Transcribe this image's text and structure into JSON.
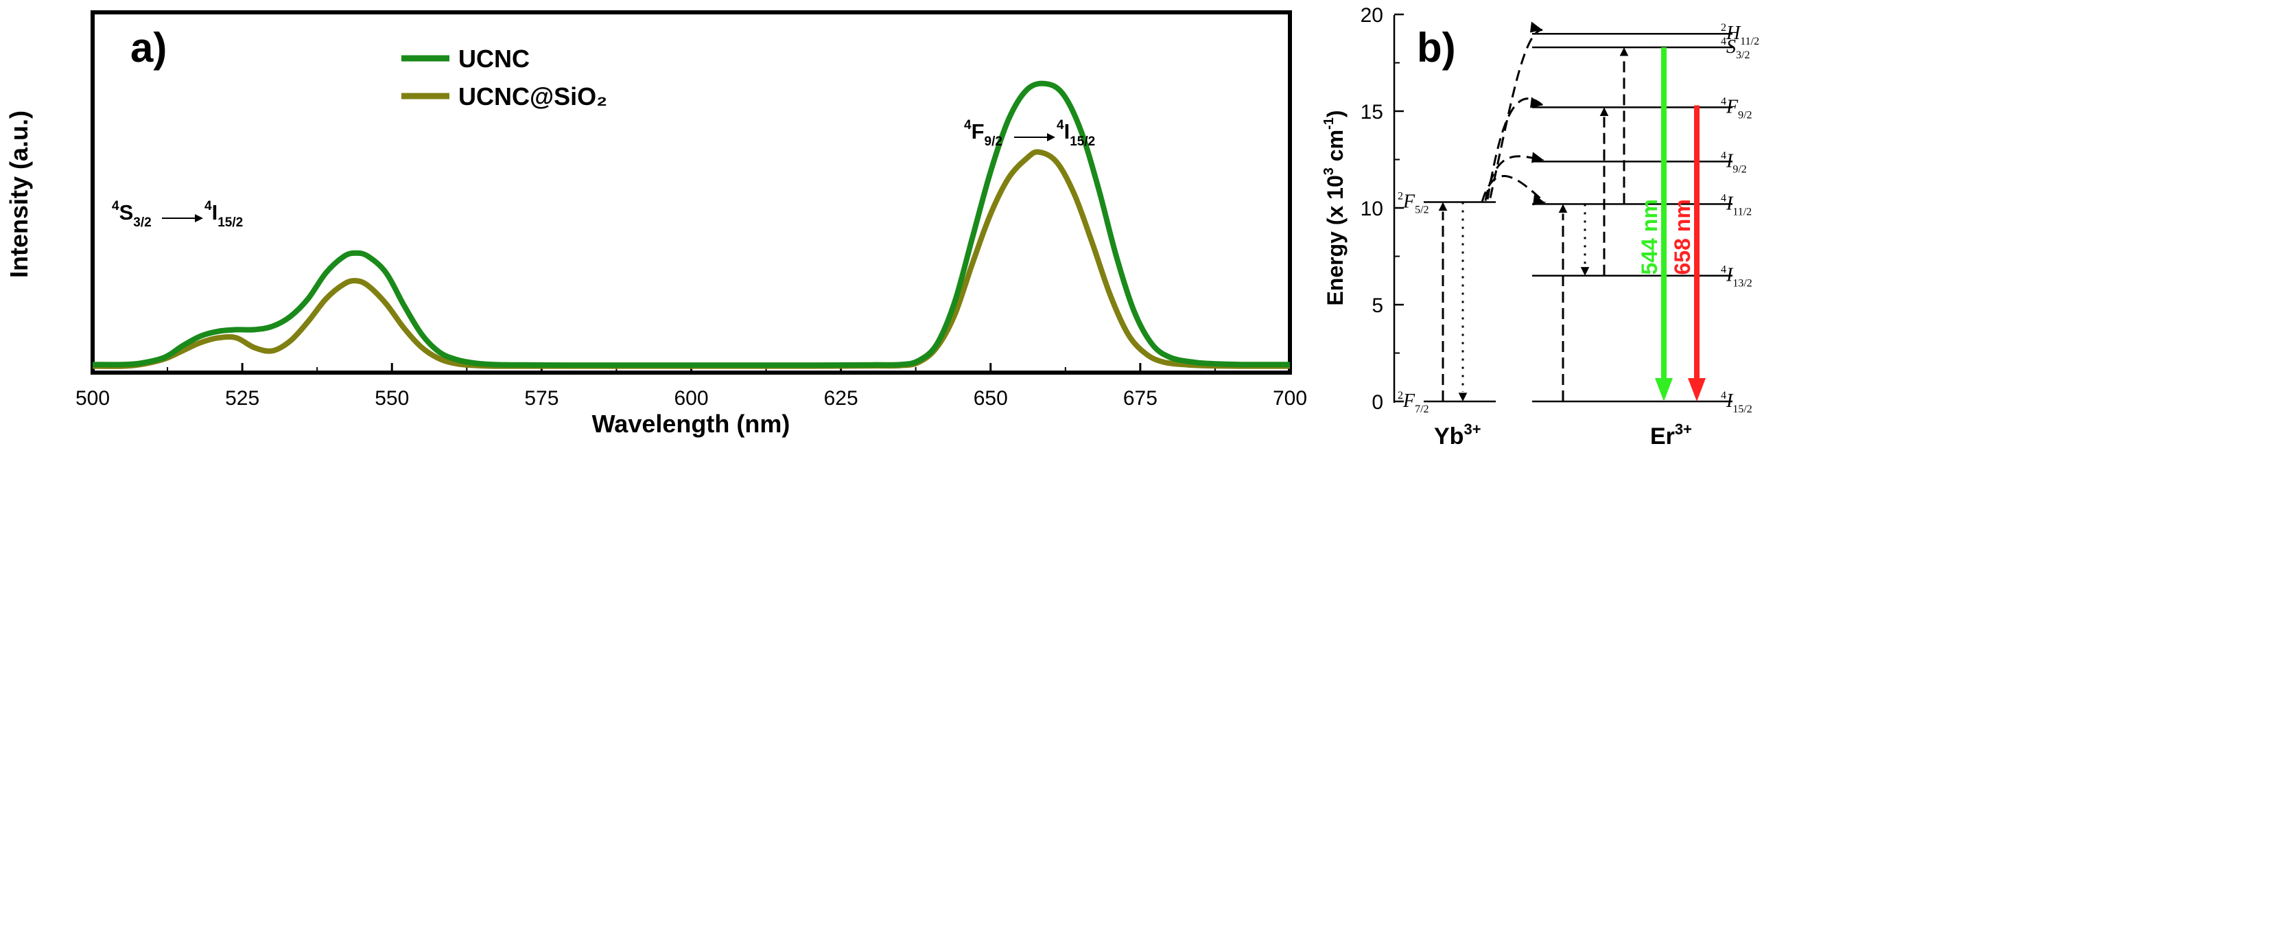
{
  "chart_data": [
    {
      "type": "line",
      "panel_label": "a)",
      "xlabel": "Wavelength (nm)",
      "ylabel": "Intensity (a.u.)",
      "xlim": [
        500,
        700
      ],
      "ylim": [
        0,
        100
      ],
      "x_ticks": [
        "500",
        "525",
        "550",
        "575",
        "600",
        "625",
        "650",
        "675",
        "700"
      ],
      "legend": [
        "UCNC",
        "UCNC@SiO₂"
      ],
      "legend_position": "top-center",
      "series": [
        {
          "name": "UCNC",
          "color": "#1a8a1a",
          "x": [
            500,
            505,
            508,
            512,
            515,
            518,
            521,
            524,
            527,
            530,
            533,
            536,
            539,
            542,
            544,
            546,
            549,
            552,
            555,
            558,
            561,
            564,
            567,
            570,
            580,
            590,
            600,
            610,
            620,
            630,
            635,
            638,
            641,
            644,
            647,
            650,
            653,
            656,
            659,
            662,
            665,
            668,
            671,
            674,
            677,
            680,
            684,
            688,
            692,
            696,
            700
          ],
          "y": [
            0.8,
            0.8,
            1.2,
            3,
            6.5,
            9.5,
            11,
            11.5,
            11.5,
            12.5,
            15.5,
            21,
            29,
            34,
            35,
            34,
            29,
            19,
            10,
            4.5,
            2.2,
            1.2,
            0.8,
            0.7,
            0.6,
            0.6,
            0.6,
            0.6,
            0.6,
            0.7,
            0.8,
            2,
            7,
            20,
            40,
            60,
            76,
            85,
            87,
            84,
            73,
            55,
            34,
            17,
            7,
            3,
            1.5,
            1,
            0.8,
            0.8,
            0.8
          ]
        },
        {
          "name": "UCNC@SiO₂",
          "color": "#808012",
          "x": [
            500,
            505,
            508,
            512,
            515,
            518,
            521,
            524,
            527,
            530,
            533,
            536,
            539,
            542,
            544,
            546,
            549,
            552,
            555,
            558,
            561,
            564,
            567,
            570,
            580,
            590,
            600,
            610,
            620,
            630,
            635,
            638,
            641,
            644,
            647,
            650,
            653,
            656,
            658,
            661,
            664,
            667,
            670,
            673,
            676,
            679,
            683,
            687,
            692,
            696,
            700
          ],
          "y": [
            0.3,
            0.3,
            0.8,
            2.5,
            5,
            7.5,
            9,
            9,
            6,
            5,
            8,
            14,
            21,
            25.5,
            26.5,
            25,
            19.5,
            12,
            6,
            2.5,
            1,
            0.5,
            0.3,
            0.3,
            0.3,
            0.3,
            0.3,
            0.3,
            0.3,
            0.4,
            0.5,
            1.5,
            6,
            16,
            32,
            47,
            58,
            64,
            66,
            63,
            53,
            38,
            22,
            10,
            4,
            1.5,
            0.7,
            0.4,
            0.3,
            0.3,
            0.3
          ]
        }
      ],
      "annotations": [
        {
          "pre": "4",
          "base": "S",
          "sub": "3/2",
          "pre2": "4",
          "base2": "I",
          "sub2": "15/2"
        },
        {
          "pre": "4",
          "base": "F",
          "sub": "9/2",
          "pre2": "4",
          "base2": "I",
          "sub2": "15/2"
        }
      ]
    },
    {
      "type": "diagram",
      "panel_label": "b)",
      "ylabel": "Energy (x 10",
      "ylabel_sup": "3",
      "ylabel_unit": " cm",
      "ylabel_unit_sup": "-1",
      "ylabel_close": ")",
      "ylim": [
        0,
        20
      ],
      "y_ticks": [
        0,
        5,
        10,
        15,
        20
      ],
      "ions": [
        {
          "name": "Yb",
          "charge": "3+"
        },
        {
          "name": "Er",
          "charge": "3+"
        }
      ],
      "yb_levels": [
        {
          "term": "F",
          "pre": "2",
          "sub": "7/2",
          "energy": 0
        },
        {
          "term": "F",
          "pre": "2",
          "sub": "5/2",
          "energy": 10.3
        }
      ],
      "er_levels": [
        {
          "term": "I",
          "pre": "4",
          "sub": "15/2",
          "energy": 0
        },
        {
          "term": "I",
          "pre": "4",
          "sub": "13/2",
          "energy": 6.5
        },
        {
          "term": "I",
          "pre": "4",
          "sub": "11/2",
          "energy": 10.2
        },
        {
          "term": "I",
          "pre": "4",
          "sub": "9/2",
          "energy": 12.4
        },
        {
          "term": "F",
          "pre": "4",
          "sub": "9/2",
          "energy": 15.2
        },
        {
          "term": "S",
          "pre": "4",
          "sub": "3/2",
          "energy": 18.3
        },
        {
          "term": "H",
          "pre": "2",
          "sub": "11/2",
          "energy": 19.0
        }
      ],
      "emissions": [
        {
          "label": "544 nm",
          "color": "#33ee22",
          "from": 18.3,
          "to": 0
        },
        {
          "label": "658 nm",
          "color": "#ff2222",
          "from": 15.3,
          "to": 0
        }
      ]
    }
  ]
}
